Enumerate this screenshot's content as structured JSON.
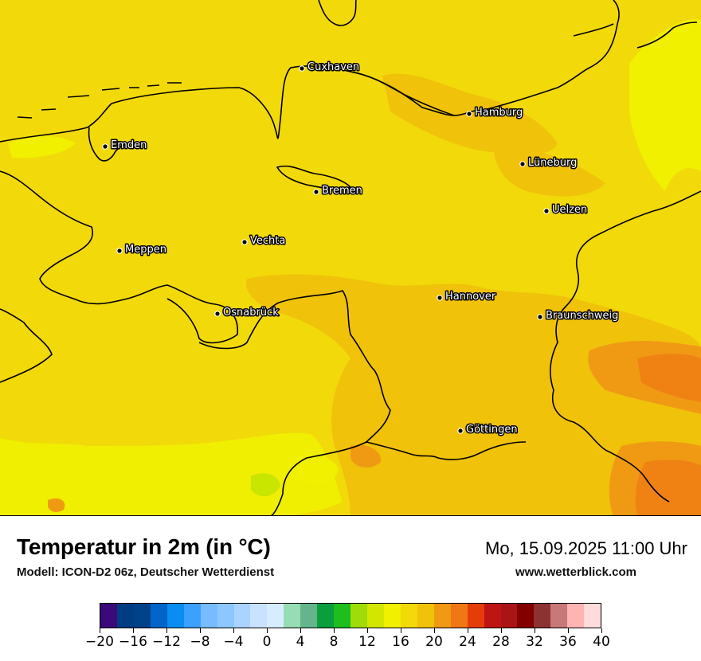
{
  "title": "Temperatur in 2m (in °C)",
  "subtitle": "Modell: ICON-D2 06z, Deutscher Wetterdienst",
  "datetime": "Mo, 15.09.2025 11:00 Uhr",
  "website": "www.wetterblick.com",
  "colors": {
    "base": "#f2d90a",
    "yellow": "#f0f000",
    "yellow_green": "#c8e600",
    "light_orange": "#f0c20a",
    "orange": "#f09a14",
    "dark_orange": "#f08214",
    "border_line": "#000000"
  },
  "cities": [
    {
      "name": "Cuxhaven"
    },
    {
      "name": "Hamburg"
    },
    {
      "name": "Emden"
    },
    {
      "name": "Lüneburg"
    },
    {
      "name": "Bremen"
    },
    {
      "name": "Uelzen"
    },
    {
      "name": "Vechta"
    },
    {
      "name": "Meppen"
    },
    {
      "name": "Hannover"
    },
    {
      "name": "Osnabrück"
    },
    {
      "name": "Braunschweig"
    },
    {
      "name": "Göttingen"
    }
  ],
  "legend": {
    "unit": "°C",
    "ticks": [
      "−20",
      "−16",
      "−12",
      "−8",
      "−4",
      "0",
      "4",
      "8",
      "12",
      "16",
      "20",
      "24",
      "28",
      "32",
      "36",
      "40"
    ],
    "colors": [
      "#3a0a7a",
      "#003c82",
      "#00428a",
      "#0064c8",
      "#0a8cf0",
      "#3ca0ff",
      "#78bcff",
      "#8cc8ff",
      "#aad4ff",
      "#c8e2ff",
      "#d8ecff",
      "#96dcb4",
      "#64b48c",
      "#0a9e3c",
      "#1ebe1e",
      "#a0dc0a",
      "#d2e600",
      "#f0f000",
      "#f2d90a",
      "#f0c20a",
      "#f09a14",
      "#f07814",
      "#e63c0a",
      "#be1414",
      "#aa1414",
      "#820000",
      "#8c3232",
      "#c87878",
      "#ffb4b4",
      "#ffdcdc"
    ]
  }
}
